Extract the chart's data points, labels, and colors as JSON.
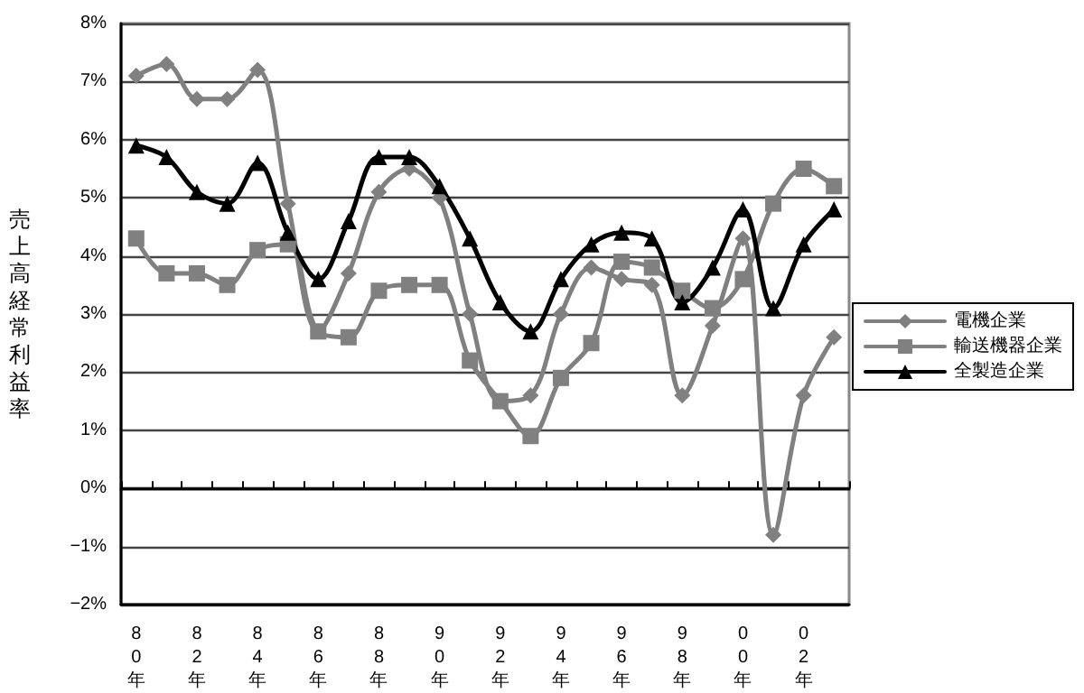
{
  "chart_data": {
    "type": "line",
    "ylabel": "売上高経常利益率",
    "categories": [
      "80年",
      null,
      "82年",
      null,
      "84年",
      null,
      "86年",
      null,
      "88年",
      null,
      "90年",
      null,
      "92年",
      null,
      "94年",
      null,
      "96年",
      null,
      "98年",
      null,
      "00年",
      null,
      "02年",
      null
    ],
    "series": [
      {
        "name": "電機企業",
        "color": "#808080",
        "marker": "diamond",
        "values": [
          7.1,
          7.3,
          6.7,
          6.7,
          7.2,
          4.9,
          2.7,
          3.7,
          5.1,
          5.5,
          5.0,
          3.0,
          1.5,
          1.6,
          3.0,
          3.8,
          3.6,
          3.5,
          1.6,
          2.8,
          4.3,
          -0.8,
          1.6,
          2.6
        ]
      },
      {
        "name": "輸送機器企業",
        "color": "#808080",
        "marker": "square",
        "values": [
          4.3,
          3.7,
          3.7,
          3.5,
          4.1,
          4.2,
          2.7,
          2.6,
          3.4,
          3.5,
          3.5,
          2.2,
          1.5,
          0.9,
          1.9,
          2.5,
          3.9,
          3.8,
          3.4,
          3.1,
          3.6,
          4.9,
          5.5,
          5.2
        ]
      },
      {
        "name": "全製造企業",
        "color": "#000000",
        "marker": "triangle",
        "values": [
          5.9,
          5.7,
          5.1,
          4.9,
          5.6,
          4.4,
          3.6,
          4.6,
          5.7,
          5.7,
          5.2,
          4.3,
          3.2,
          2.7,
          3.6,
          4.2,
          4.4,
          4.3,
          3.2,
          3.8,
          4.8,
          3.1,
          4.2,
          4.8
        ]
      }
    ],
    "ylim": [
      -2,
      8
    ],
    "yticks": [
      {
        "value": -2,
        "label": "−2%"
      },
      {
        "value": -1,
        "label": "−1%"
      },
      {
        "value": 0,
        "label": "0%"
      },
      {
        "value": 1,
        "label": "1%"
      },
      {
        "value": 2,
        "label": "2%"
      },
      {
        "value": 3,
        "label": "3%"
      },
      {
        "value": 4,
        "label": "4%"
      },
      {
        "value": 5,
        "label": "5%"
      },
      {
        "value": 6,
        "label": "6%"
      },
      {
        "value": 7,
        "label": "7%"
      },
      {
        "value": 8,
        "label": "8%"
      }
    ],
    "grid": "y",
    "legend": "right",
    "line_style": "solid"
  }
}
